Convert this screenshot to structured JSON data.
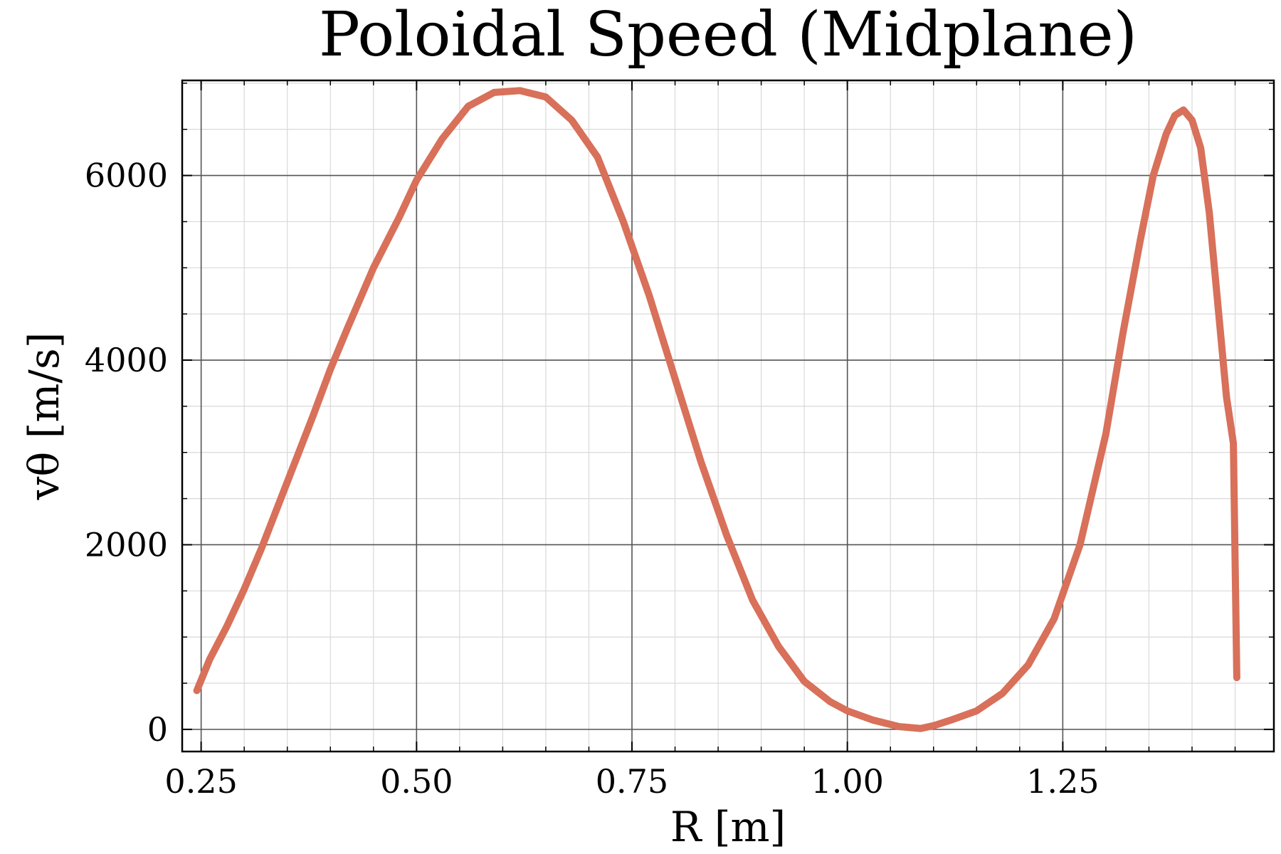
{
  "chart_data": {
    "type": "line",
    "title": "Poloidal Speed (Midplane)",
    "xlabel": "R [m]",
    "ylabel": "vθ [m/s]",
    "xlim": [
      0.228,
      1.495
    ],
    "ylim": [
      -240,
      7030
    ],
    "x_ticks": [
      "0.25",
      "0.50",
      "0.75",
      "1.00",
      "1.25"
    ],
    "y_ticks": [
      "0",
      "2000",
      "4000",
      "6000"
    ],
    "grid": true,
    "line_color": "#d8705a",
    "series": [
      {
        "x": [
          0.245,
          0.26,
          0.28,
          0.3,
          0.32,
          0.35,
          0.38,
          0.4,
          0.42,
          0.45,
          0.48,
          0.5,
          0.53,
          0.56,
          0.59,
          0.62,
          0.65,
          0.68,
          0.71,
          0.74,
          0.77,
          0.8,
          0.83,
          0.86,
          0.89,
          0.92,
          0.95,
          0.98,
          1.0,
          1.03,
          1.06,
          1.085,
          1.1,
          1.12,
          1.15,
          1.18,
          1.21,
          1.24,
          1.27,
          1.3,
          1.32,
          1.34,
          1.355,
          1.37,
          1.38,
          1.39,
          1.4,
          1.41,
          1.42,
          1.43,
          1.44,
          1.448,
          1.452
        ],
        "y": [
          420,
          760,
          1120,
          1520,
          1960,
          2680,
          3400,
          3900,
          4350,
          5000,
          5550,
          5950,
          6400,
          6750,
          6900,
          6920,
          6850,
          6600,
          6200,
          5500,
          4700,
          3800,
          2900,
          2100,
          1400,
          900,
          520,
          300,
          200,
          100,
          30,
          10,
          40,
          100,
          200,
          390,
          700,
          1200,
          2000,
          3200,
          4300,
          5300,
          6000,
          6450,
          6650,
          6710,
          6600,
          6300,
          5600,
          4600,
          3600,
          3100,
          560
        ]
      }
    ]
  }
}
